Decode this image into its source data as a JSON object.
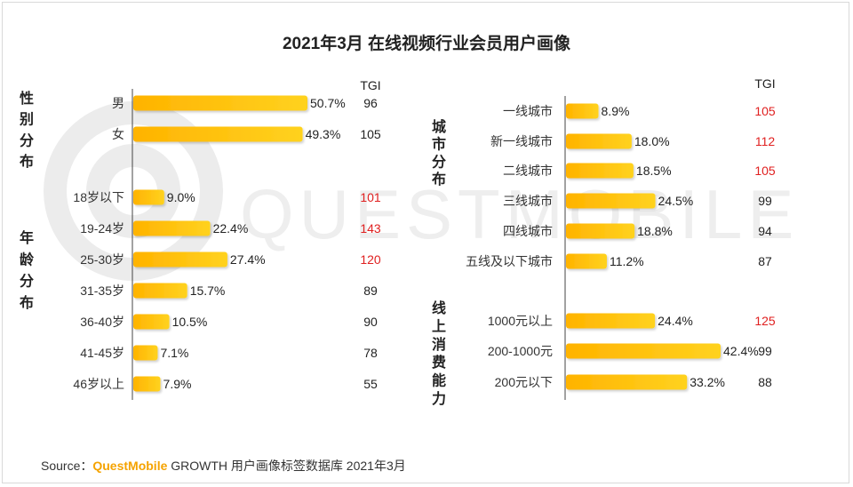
{
  "title": "2021年3月 在线视频行业会员用户画像",
  "watermark": "QUESTMOBILE",
  "source": {
    "prefix": "Source：",
    "brand": "QuestMobile",
    "rest": " GROWTH 用户画像标签数据库 2021年3月"
  },
  "colors": {
    "bar_start": "#ffb300",
    "bar_end": "#ffd21f",
    "tgi_normal": "#222222",
    "tgi_high": "#e02020",
    "axis": "#444444"
  },
  "chart_data": [
    {
      "type": "bar",
      "orientation": "horizontal",
      "tgi_label": "TGI",
      "groups": [
        {
          "label": "性别分布",
          "categories": [
            "男",
            "女"
          ],
          "values": [
            50.7,
            49.3
          ],
          "value_labels": [
            "50.7%",
            "49.3%"
          ],
          "tgi": [
            96,
            105
          ],
          "tgi_highlight": [
            false,
            false
          ]
        },
        {
          "label": "年龄分布",
          "categories": [
            "18岁以下",
            "19-24岁",
            "25-30岁",
            "31-35岁",
            "36-40岁",
            "41-45岁",
            "46岁以上"
          ],
          "values": [
            9.0,
            22.4,
            27.4,
            15.7,
            10.5,
            7.1,
            7.9
          ],
          "value_labels": [
            "9.0%",
            "22.4%",
            "27.4%",
            "15.7%",
            "10.5%",
            "7.1%",
            "7.9%"
          ],
          "tgi": [
            101,
            143,
            120,
            89,
            90,
            78,
            55
          ],
          "tgi_highlight": [
            true,
            true,
            true,
            false,
            false,
            false,
            false
          ]
        }
      ],
      "xlim": [
        0,
        50.7
      ]
    },
    {
      "type": "bar",
      "orientation": "horizontal",
      "tgi_label": "TGI",
      "groups": [
        {
          "label": "城市分布",
          "categories": [
            "一线城市",
            "新一线城市",
            "二线城市",
            "三线城市",
            "四线城市",
            "五线及以下城市"
          ],
          "values": [
            8.9,
            18.0,
            18.5,
            24.5,
            18.8,
            11.2
          ],
          "value_labels": [
            "8.9%",
            "18.0%",
            "18.5%",
            "24.5%",
            "18.8%",
            "11.2%"
          ],
          "tgi": [
            105,
            112,
            105,
            99,
            94,
            87
          ],
          "tgi_highlight": [
            true,
            true,
            true,
            false,
            false,
            false
          ]
        },
        {
          "label": "线上消费能力",
          "categories": [
            "1000元以上",
            "200-1000元",
            "200元以下"
          ],
          "values": [
            24.4,
            42.4,
            33.2
          ],
          "value_labels": [
            "24.4%",
            "42.4%",
            "33.2%"
          ],
          "tgi": [
            125,
            99,
            88
          ],
          "tgi_highlight": [
            true,
            false,
            false
          ]
        }
      ],
      "xlim": [
        0,
        42.4
      ]
    }
  ]
}
